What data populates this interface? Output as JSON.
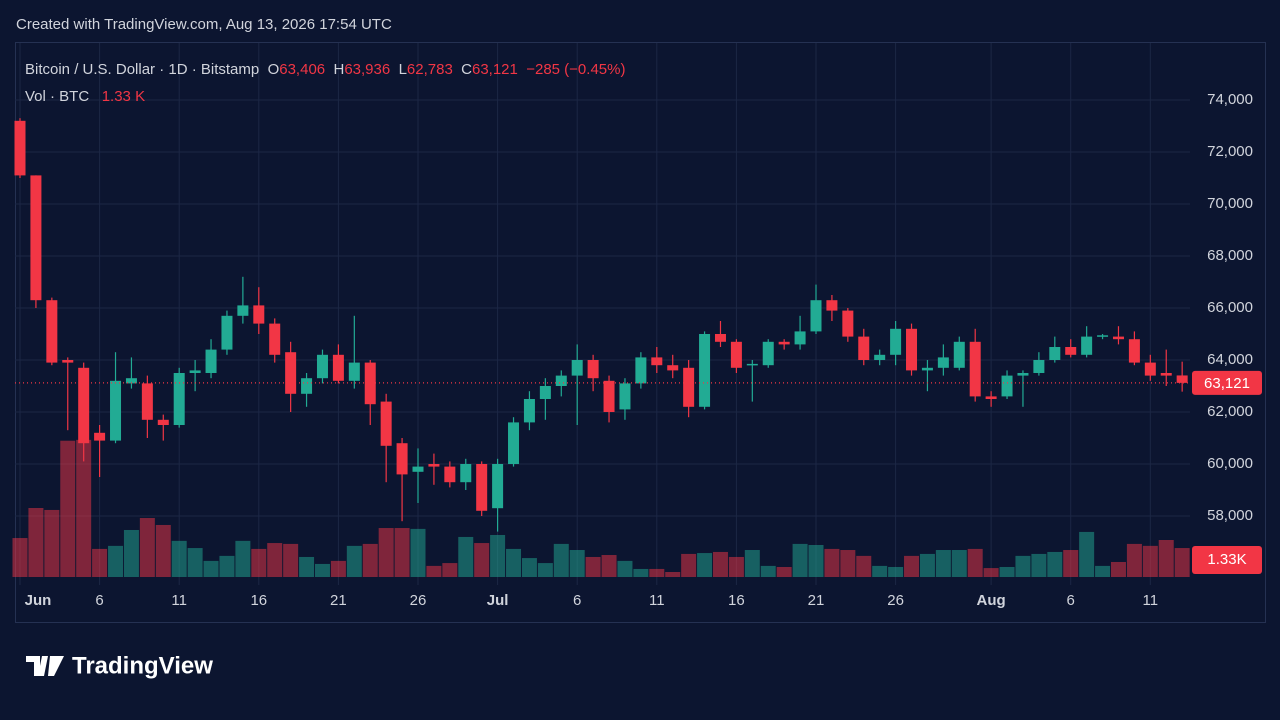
{
  "chart_data": {
    "type": "candlestick",
    "credit": "Created with TradingView.com, Aug 13, 2026 17:54 UTC",
    "symbol": "Bitcoin / U.S. Dollar · 1D · Bitstamp",
    "o_key": "O",
    "o": "63,406",
    "h_key": "H",
    "h": "63,936",
    "l_key": "L",
    "l": "62,783",
    "c_key": "C",
    "c": "63,121",
    "change": "−285 (−0.45%)",
    "vol_title": "Vol · BTC",
    "vol_value": "1.33 K",
    "logo": "TradingView",
    "up_color": "#22ab94",
    "down_color": "#f23645",
    "categories": [
      "Jun",
      null,
      null,
      null,
      null,
      "6",
      null,
      null,
      null,
      null,
      "11",
      null,
      null,
      null,
      null,
      "16",
      null,
      null,
      null,
      null,
      "21",
      null,
      null,
      null,
      null,
      "26",
      null,
      null,
      null,
      null,
      "Jul",
      null,
      null,
      null,
      null,
      "6",
      null,
      null,
      null,
      null,
      "11",
      null,
      null,
      null,
      null,
      "16",
      null,
      null,
      null,
      null,
      "21",
      null,
      null,
      null,
      null,
      "26",
      null,
      null,
      null,
      null,
      null,
      "Aug",
      null,
      null,
      null,
      null,
      "6",
      null,
      null,
      null,
      null,
      "11",
      null,
      null
    ],
    "open": [
      73200,
      71100,
      66300,
      64000,
      63700,
      61200,
      60900,
      63100,
      63100,
      61700,
      61500,
      63500,
      63500,
      64400,
      65700,
      66100,
      65400,
      64300,
      62700,
      63300,
      64200,
      63200,
      63900,
      62400,
      60800,
      59700,
      60000,
      59900,
      59300,
      60000,
      58300,
      60000,
      61600,
      62500,
      63000,
      63400,
      64000,
      63200,
      62100,
      63100,
      64100,
      63800,
      63700,
      62200,
      65000,
      64700,
      63800,
      63800,
      64700,
      64600,
      65100,
      66300,
      65900,
      64900,
      64000,
      64200,
      65200,
      63600,
      63700,
      63700,
      64700,
      62600,
      62600,
      63400,
      63500,
      64000,
      64500,
      64200,
      64900,
      64900,
      64800,
      63900,
      63500,
      63406
    ],
    "high": [
      73300,
      71100,
      66400,
      64100,
      63900,
      61500,
      64300,
      64100,
      63400,
      61900,
      63700,
      64000,
      64800,
      65900,
      67200,
      66800,
      65600,
      64700,
      63500,
      64400,
      64600,
      65700,
      64000,
      62700,
      61000,
      60600,
      60400,
      60100,
      60200,
      60100,
      60200,
      61800,
      62800,
      63300,
      63600,
      64600,
      64200,
      63400,
      63300,
      64300,
      64500,
      64200,
      64000,
      65100,
      65500,
      64800,
      64000,
      64800,
      64800,
      65700,
      66900,
      66500,
      66000,
      65200,
      64400,
      65500,
      65400,
      64000,
      64600,
      64900,
      65200,
      62800,
      63600,
      63600,
      64300,
      64900,
      64800,
      65300,
      65000,
      65300,
      65100,
      64200,
      64400,
      63936
    ],
    "low": [
      71000,
      66000,
      63800,
      61300,
      60100,
      59500,
      60800,
      62900,
      61000,
      60900,
      61400,
      62800,
      63300,
      64200,
      65400,
      65000,
      63900,
      62000,
      62200,
      63100,
      63100,
      62900,
      61500,
      59300,
      57800,
      58500,
      59200,
      59100,
      59000,
      58000,
      57400,
      59900,
      61300,
      61700,
      62600,
      61500,
      62800,
      61600,
      61700,
      62900,
      63500,
      63300,
      61800,
      62100,
      64500,
      63500,
      62400,
      63700,
      64400,
      64400,
      65000,
      65500,
      64700,
      63800,
      63800,
      63800,
      63400,
      62800,
      63400,
      63600,
      62400,
      62200,
      62500,
      62200,
      63400,
      63900,
      64100,
      64100,
      64800,
      64600,
      63800,
      63200,
      63000,
      62783
    ],
    "close": [
      71100,
      66300,
      63900,
      63900,
      60800,
      60900,
      63200,
      63300,
      61700,
      61500,
      63500,
      63600,
      64400,
      65700,
      66100,
      65400,
      64200,
      62700,
      63300,
      64200,
      63200,
      63900,
      62300,
      60700,
      59600,
      59900,
      59900,
      59300,
      60000,
      58200,
      60000,
      61600,
      62500,
      63000,
      63400,
      64000,
      63300,
      62000,
      63100,
      64100,
      63800,
      63600,
      62200,
      65000,
      64700,
      63700,
      63850,
      64700,
      64600,
      65100,
      66300,
      65900,
      64900,
      64000,
      64200,
      65200,
      63600,
      63700,
      64100,
      64700,
      62600,
      62500,
      63400,
      63500,
      64000,
      64500,
      64200,
      64900,
      64950,
      64800,
      63900,
      63400,
      63400,
      63121
    ],
    "volume": [
      1790,
      3170,
      3080,
      6260,
      6300,
      1290,
      1430,
      2160,
      2710,
      2390,
      1660,
      1330,
      740,
      970,
      1660,
      1290,
      1560,
      1520,
      920,
      600,
      740,
      1430,
      1520,
      2250,
      2250,
      2210,
      510,
      640,
      1840,
      1560,
      1930,
      1290,
      870,
      640,
      1520,
      1240,
      920,
      1010,
      740,
      370,
      370,
      230,
      1060,
      1100,
      1150,
      920,
      1240,
      510,
      460,
      1520,
      1470,
      1290,
      1240,
      970,
      510,
      460,
      970,
      1060,
      1240,
      1240,
      1290,
      410,
      460,
      970,
      1060,
      1150,
      1240,
      2070,
      510,
      690,
      1520,
      1430,
      1700,
      1330
    ],
    "last_price_label": "63,121",
    "volume_label": "1.33K",
    "ylim": [
      56000,
      76000
    ],
    "yticks": [
      {
        "value": 58000,
        "label": "58,000"
      },
      {
        "value": 60000,
        "label": "60,000"
      },
      {
        "value": 62000,
        "label": "62,000"
      },
      {
        "value": 64000,
        "label": "64,000"
      },
      {
        "value": 66000,
        "label": "66,000"
      },
      {
        "value": 68000,
        "label": "68,000"
      },
      {
        "value": 70000,
        "label": "70,000"
      },
      {
        "value": 72000,
        "label": "72,000"
      },
      {
        "value": 74000,
        "label": "74,000"
      }
    ],
    "volume_ylim": [
      0,
      13000
    ],
    "grid": true
  }
}
